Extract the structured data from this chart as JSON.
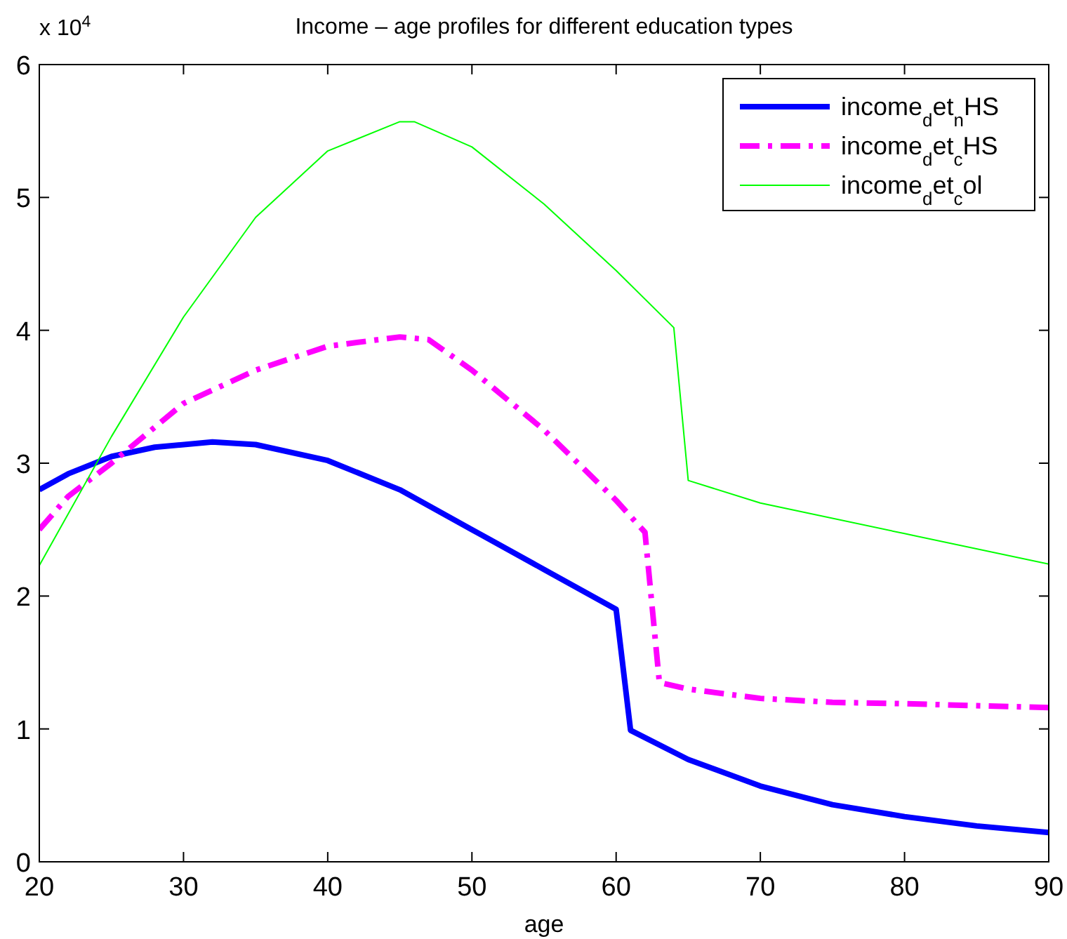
{
  "chart_data": {
    "type": "line",
    "title": "Income – age profiles for different education types",
    "xlabel": "age",
    "annotations": [
      "x 10$^{4}$"
    ],
    "xlim": [
      20,
      90
    ],
    "xticks": [
      20,
      30,
      40,
      50,
      60,
      70,
      80,
      90
    ],
    "ylim": [
      0,
      6
    ],
    "yticks": [
      0,
      1,
      2,
      3,
      4,
      5,
      6
    ],
    "grid": false,
    "legend": "top right",
    "series": [
      {
        "name": "income$_{d}$et$_{n}$HS",
        "color": "#0000ff",
        "line_style": "solid",
        "x": [
          20,
          22,
          25,
          28,
          32,
          35,
          40,
          45,
          50,
          55,
          60,
          61,
          65,
          70,
          75,
          80,
          85,
          90
        ],
        "values": [
          2.8,
          2.92,
          3.05,
          3.12,
          3.16,
          3.14,
          3.02,
          2.8,
          2.5,
          2.2,
          1.9,
          0.99,
          0.77,
          0.57,
          0.43,
          0.34,
          0.27,
          0.22
        ]
      },
      {
        "name": "income$_{d}$et$_{c}$HS",
        "color": "#ff00ff",
        "line_style": "dashed",
        "x": [
          20,
          22,
          25,
          30,
          35,
          40,
          45,
          47,
          50,
          55,
          60,
          62,
          63,
          65,
          70,
          75,
          80,
          90
        ],
        "values": [
          2.5,
          2.75,
          3.0,
          3.45,
          3.7,
          3.88,
          3.95,
          3.93,
          3.7,
          3.25,
          2.72,
          2.48,
          1.35,
          1.3,
          1.23,
          1.2,
          1.19,
          1.16
        ]
      },
      {
        "name": "income$_{d}$et$_{c}$ol",
        "color": "#00ff00",
        "line_style": "solid",
        "x": [
          20,
          25,
          30,
          35,
          40,
          45,
          46,
          50,
          55,
          60,
          64,
          65,
          70,
          80,
          90
        ],
        "values": [
          2.23,
          3.2,
          4.1,
          4.85,
          5.35,
          5.57,
          5.57,
          5.38,
          4.95,
          4.45,
          4.02,
          2.87,
          2.7,
          2.47,
          2.24
        ]
      }
    ]
  }
}
